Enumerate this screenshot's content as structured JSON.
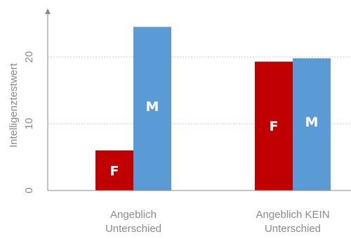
{
  "chart_data": {
    "type": "bar",
    "title": "",
    "xlabel": "",
    "ylabel": "Intelligenztestwert",
    "ylim": [
      0,
      25
    ],
    "yticks": [
      0,
      10,
      20
    ],
    "grid": true,
    "legend": "none",
    "categories": [
      [
        "Angeblich",
        "Unterschied"
      ],
      [
        "Angeblich KEIN",
        "Unterschied"
      ]
    ],
    "series": [
      {
        "label": "F",
        "color": "#c00000",
        "values": [
          6,
          19.3
        ]
      },
      {
        "label": "M",
        "color": "#5b9bd5",
        "values": [
          24.5,
          19.8
        ]
      }
    ]
  }
}
